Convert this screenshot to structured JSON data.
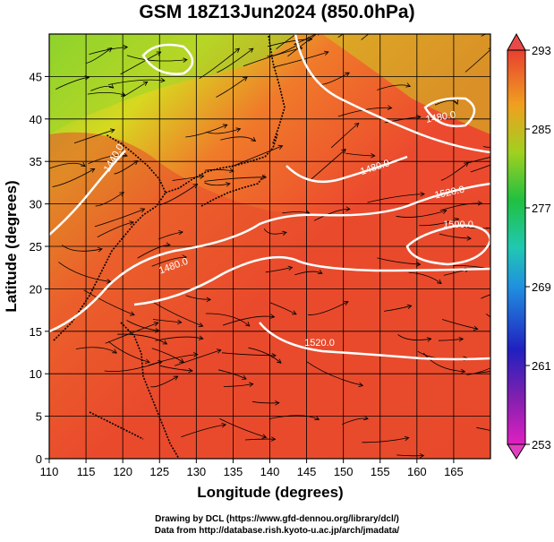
{
  "title": "GSM 18Z13Jun2024 (850.0hPa)",
  "x_axis": {
    "label": "Longitude (degrees)",
    "range": [
      110,
      170
    ],
    "ticks": [
      110,
      115,
      120,
      125,
      130,
      135,
      140,
      145,
      150,
      155,
      160,
      165
    ]
  },
  "y_axis": {
    "label": "Latitude  (degrees)",
    "range": [
      0,
      50
    ],
    "ticks": [
      0,
      5,
      10,
      15,
      20,
      25,
      30,
      35,
      40,
      45
    ]
  },
  "colorbar": {
    "min": 253,
    "max": 293,
    "labels": [
      293,
      285,
      277,
      269,
      261,
      253
    ]
  },
  "contour_labels": [
    "1440.0",
    "1480.0",
    "1520.0",
    "1500.0",
    "1520.0",
    "1480.0",
    "1480.0"
  ],
  "credits": {
    "line1": "Drawing by DCL (https://www.gfd-dennou.org/library/dcl/)",
    "line2": "Data from http://database.rish.kyoto-u.ac.jp/arch/jmadata/"
  }
}
